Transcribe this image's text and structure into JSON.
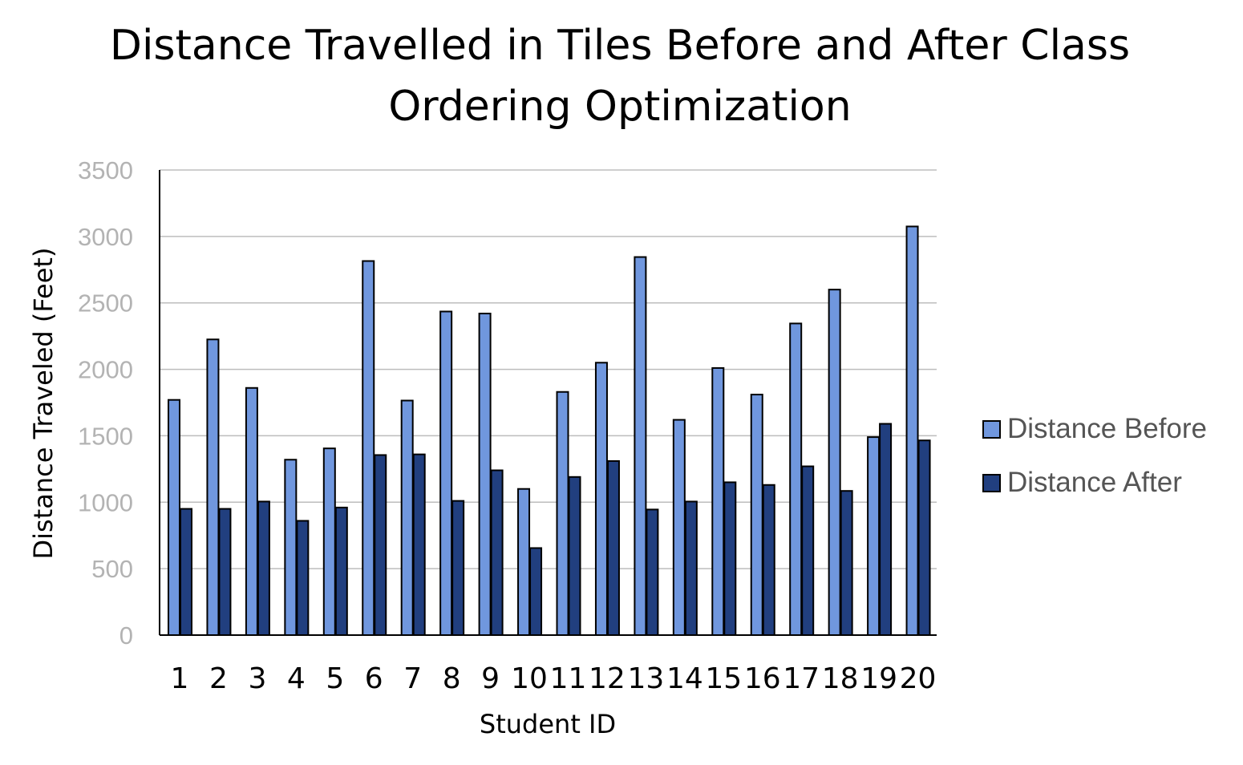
{
  "chart_data": {
    "type": "bar",
    "title_lines": [
      "Distance Travelled in Tiles Before and After Class",
      "Ordering Optimization"
    ],
    "xlabel": "Student ID",
    "ylabel": "Distance Traveled (Feet)",
    "ylim": [
      0,
      3500
    ],
    "yticks": [
      "0",
      "500",
      "1000",
      "1500",
      "2000",
      "2500",
      "3000",
      "3500"
    ],
    "grid": true,
    "legend_position": "right",
    "categories": [
      "1",
      "2",
      "3",
      "4",
      "5",
      "6",
      "7",
      "8",
      "9",
      "10",
      "11",
      "12",
      "13",
      "14",
      "15",
      "16",
      "17",
      "18",
      "19",
      "20"
    ],
    "series": [
      {
        "name": "Distance Before",
        "color": "#7097de",
        "values": [
          1770,
          2225,
          1860,
          1320,
          1405,
          2815,
          1765,
          2435,
          2420,
          1100,
          1830,
          2050,
          2845,
          1620,
          2010,
          1810,
          2345,
          2600,
          1490,
          3075
        ]
      },
      {
        "name": "Distance After",
        "color": "#213f7f",
        "values": [
          950,
          950,
          1005,
          860,
          960,
          1355,
          1360,
          1010,
          1240,
          655,
          1190,
          1310,
          945,
          1005,
          1150,
          1130,
          1270,
          1085,
          1590,
          1465
        ]
      }
    ]
  }
}
